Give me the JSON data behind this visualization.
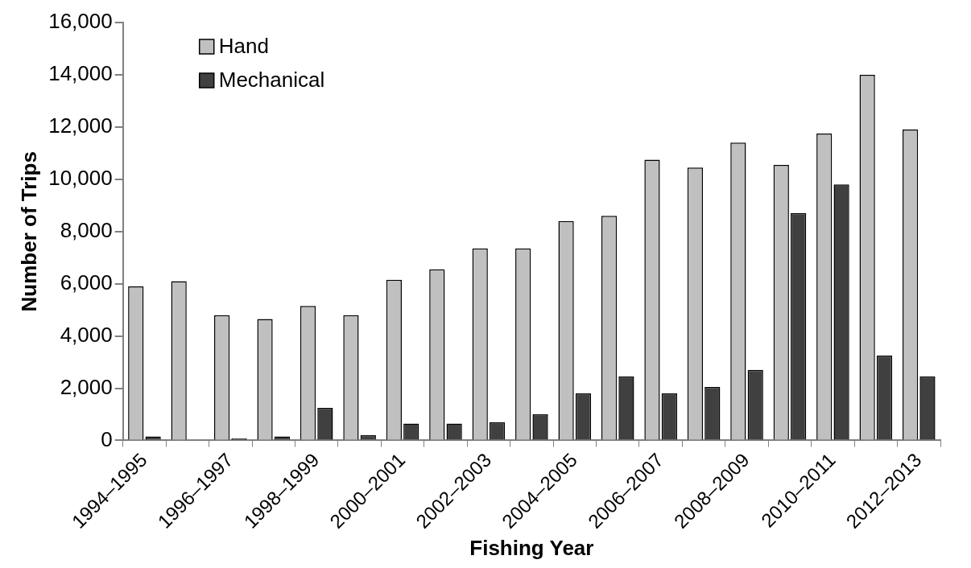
{
  "chart_data": {
    "type": "bar",
    "xlabel": "Fishing Year",
    "ylabel": "Number of Trips",
    "categories": [
      "1994–1995",
      null,
      "1996–1997",
      null,
      "1998–1999",
      null,
      "2000–2001",
      null,
      "2002–2003",
      null,
      "2004–2005",
      null,
      "2006–2007",
      null,
      "2008–2009",
      null,
      "2010–2011",
      null,
      "2012–2013"
    ],
    "series": [
      {
        "name": "Hand",
        "color": "#c0c0c0",
        "values": [
          5900,
          6100,
          4800,
          4650,
          5150,
          4800,
          6150,
          6550,
          7350,
          7350,
          8400,
          8600,
          10750,
          10450,
          11400,
          10550,
          11750,
          14000,
          11900
        ]
      },
      {
        "name": "Mechanical",
        "color": "#404040",
        "values": [
          150,
          0,
          80,
          150,
          1250,
          200,
          650,
          650,
          700,
          1000,
          1800,
          2450,
          1800,
          2050,
          2700,
          8700,
          9800,
          3250,
          2450
        ]
      }
    ],
    "ylim": [
      0,
      16000
    ],
    "yticks": [
      0,
      {
        "value": 2000,
        "label": "2,000"
      },
      {
        "value": 4000,
        "label": "4,000"
      },
      {
        "value": 6000,
        "label": "6,000"
      },
      {
        "value": 8000,
        "label": "8,000"
      },
      {
        "value": 10000,
        "label": "10,000"
      },
      {
        "value": 12000,
        "label": "12,000"
      },
      {
        "value": 14000,
        "label": "14,000"
      },
      {
        "value": 16000,
        "label": "16,000"
      }
    ],
    "grid": false,
    "legend": "top left"
  }
}
